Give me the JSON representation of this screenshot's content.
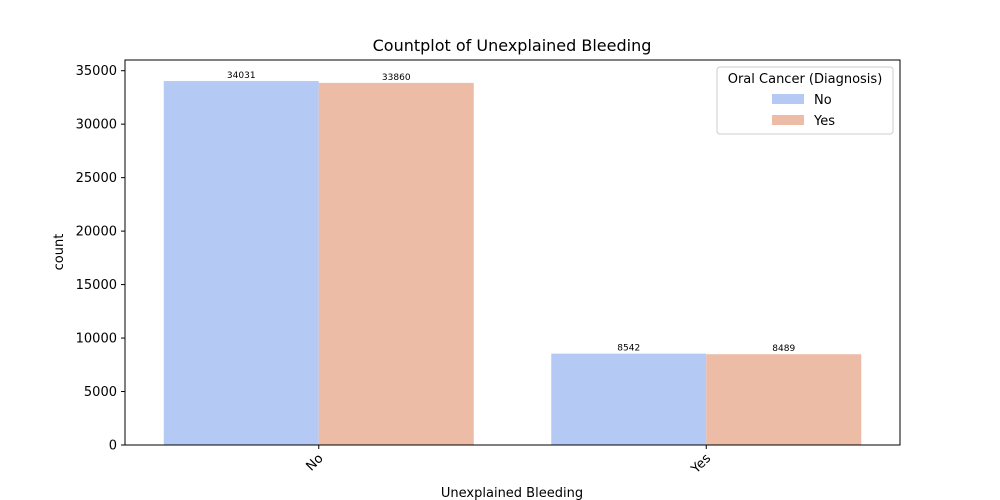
{
  "chart_data": {
    "type": "bar",
    "title": "Countplot of Unexplained Bleeding",
    "xlabel": "Unexplained Bleeding",
    "ylabel": "count",
    "categories": [
      "No",
      "Yes"
    ],
    "series": [
      {
        "name": "No",
        "values": [
          34031,
          8542
        ],
        "color": "#b4c9f4"
      },
      {
        "name": "Yes",
        "values": [
          33860,
          8489
        ],
        "color": "#ecbca7"
      }
    ],
    "ylim": [
      0,
      36000
    ],
    "yticks": [
      0,
      5000,
      10000,
      15000,
      20000,
      25000,
      30000,
      35000
    ],
    "legend": {
      "title": "Oral Cancer (Diagnosis)",
      "placement": "top-right"
    },
    "grid": false
  }
}
